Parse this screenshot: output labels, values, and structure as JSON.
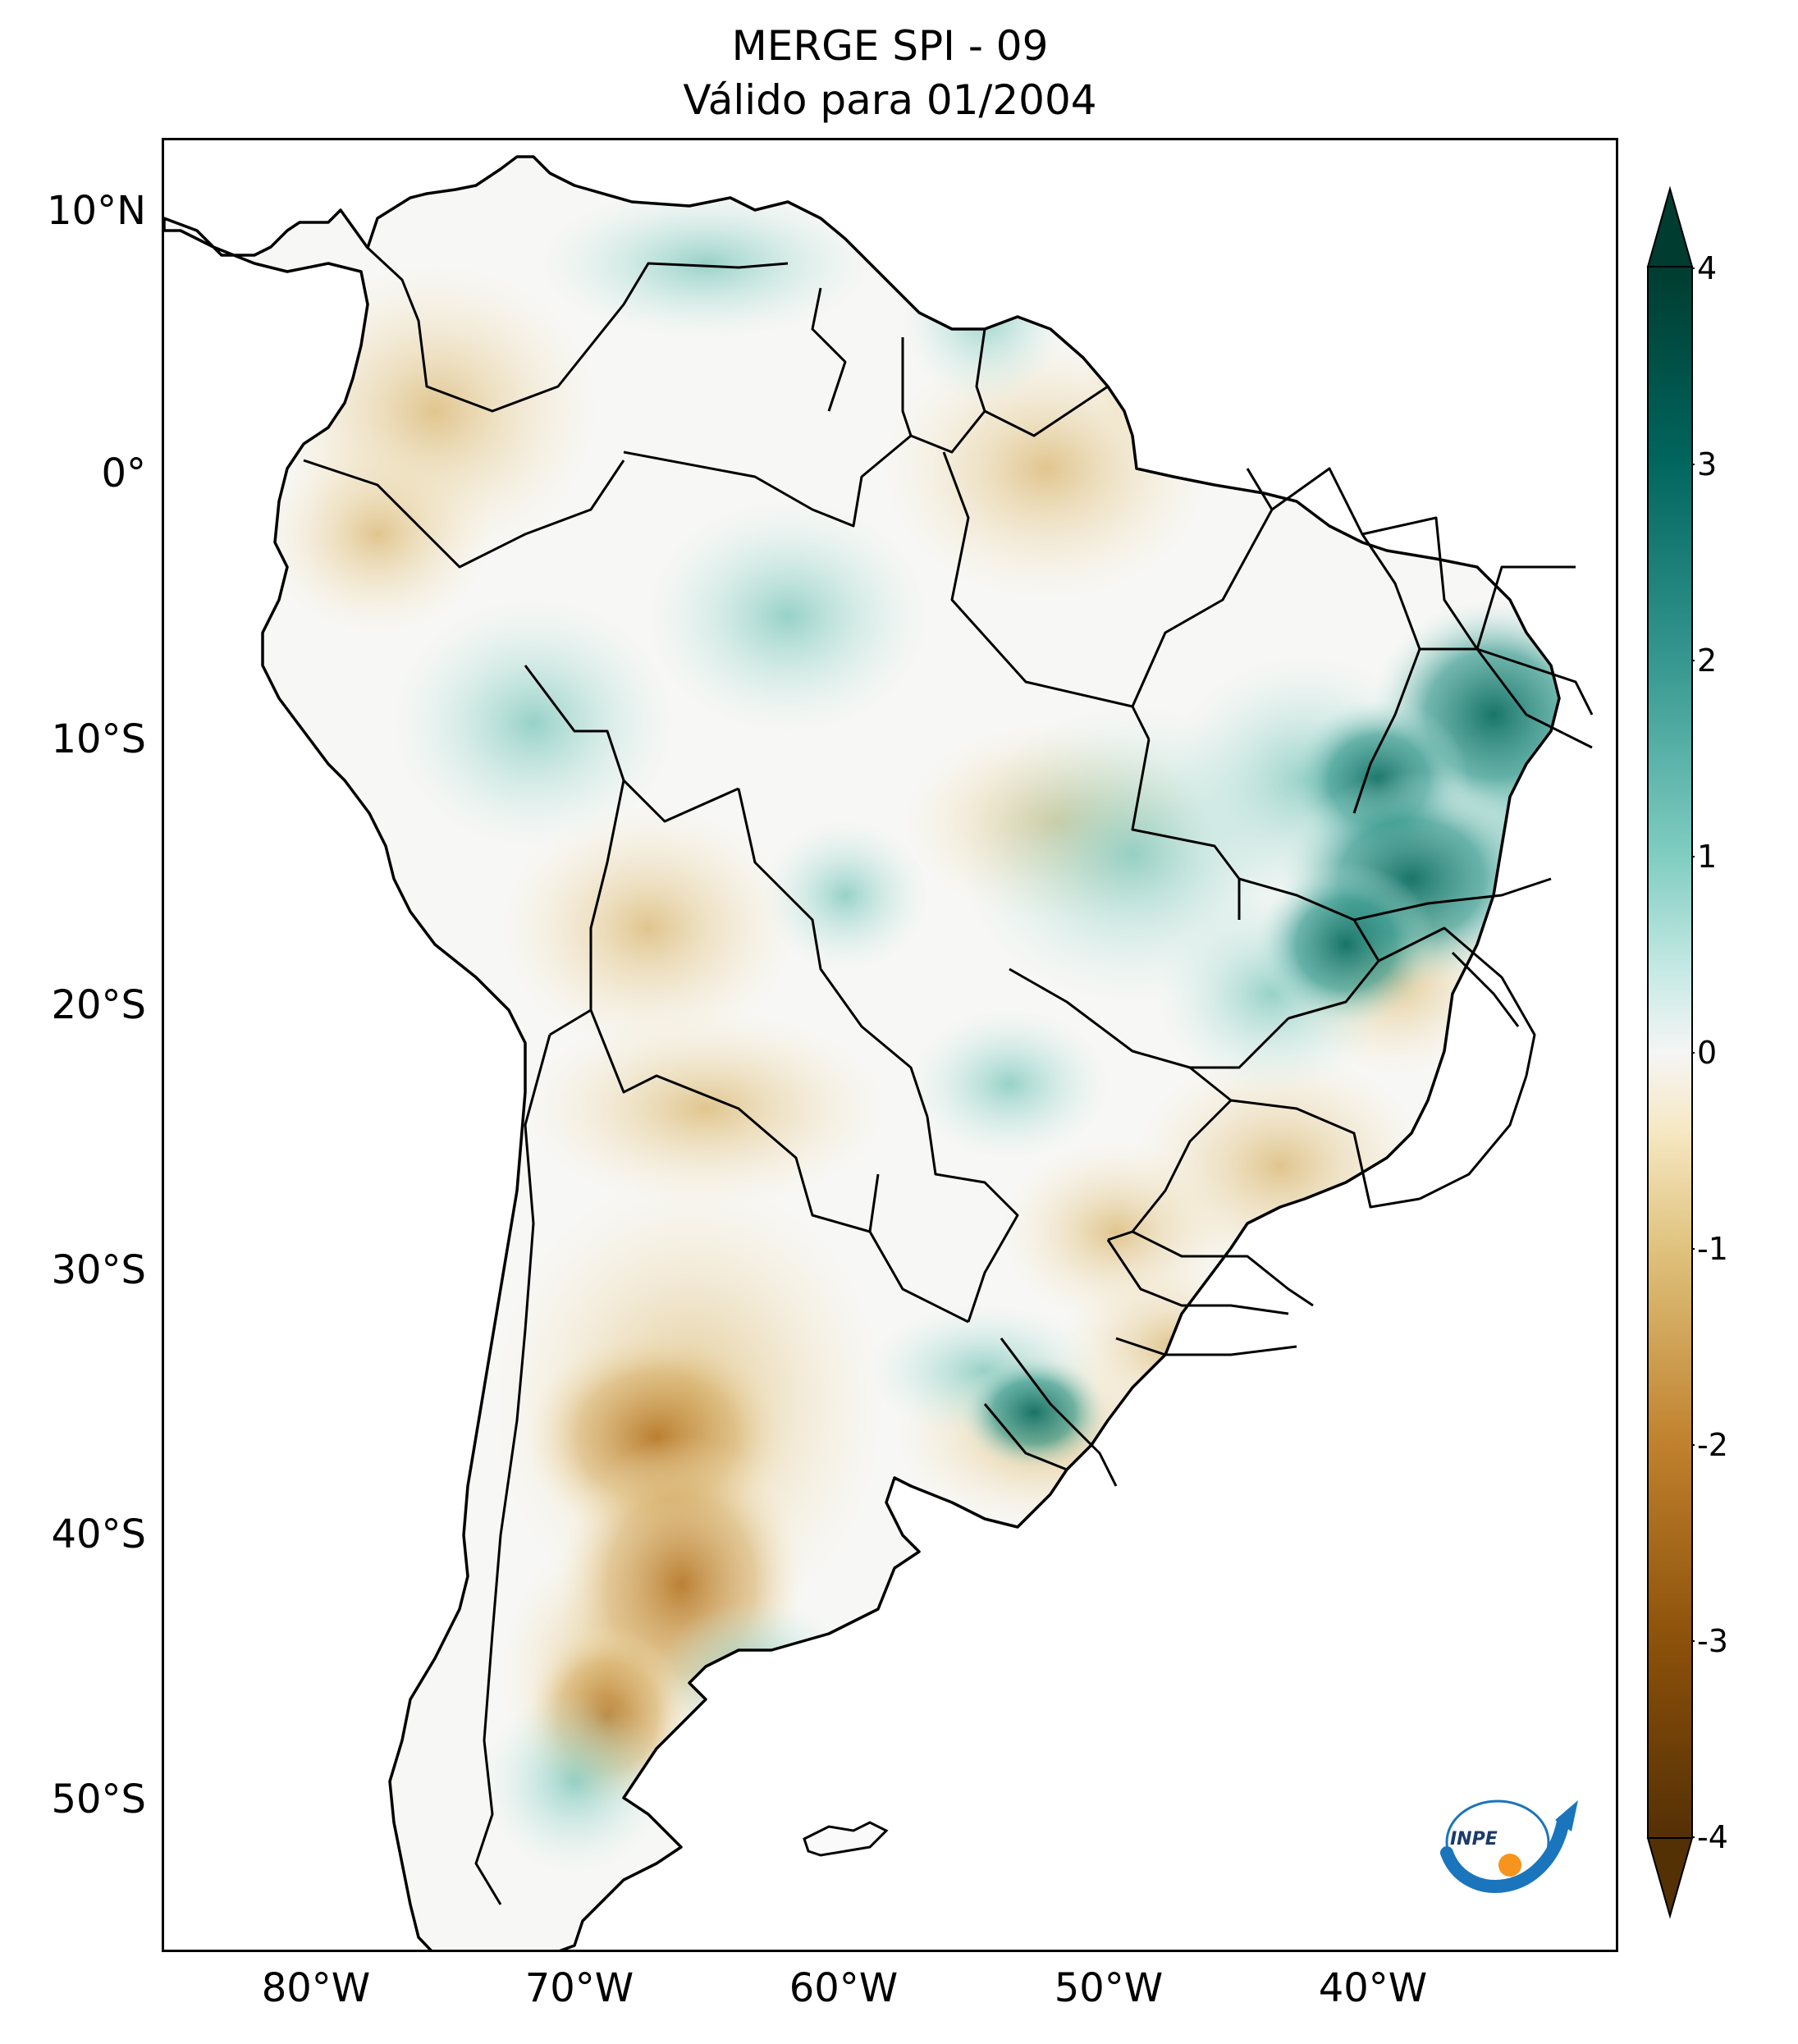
{
  "title": {
    "line1": "MERGE   SPI - 09",
    "line2": "Válido para 01/2004"
  },
  "map": {
    "lat_labels": [
      "10°N",
      "0°",
      "10°S",
      "20°S",
      "30°S",
      "40°S",
      "50°S"
    ],
    "lon_labels": [
      "80°W",
      "70°W",
      "60°W",
      "50°W",
      "40°W"
    ],
    "colorbar": {
      "ticks": [
        "4",
        "3",
        "2",
        "1",
        "0",
        "-1",
        "-2",
        "-3",
        "-4"
      ],
      "min": -4,
      "max": 4,
      "extend": "both",
      "colors": {
        "wet_extreme": "#003c30",
        "wet_high": "#01665e",
        "wet_mid": "#35978f",
        "wet_low": "#80cdc1",
        "wet_faint": "#c7eae5",
        "neutral": "#f5f5f5",
        "dry_faint": "#f6e8c3",
        "dry_low": "#dfc27d",
        "dry_mid": "#bf812d",
        "dry_high": "#8c510a",
        "dry_extreme": "#543005"
      }
    },
    "logo": {
      "text": "INPE",
      "colors": {
        "blue": "#1a75bc",
        "orange": "#f7941d"
      }
    }
  }
}
